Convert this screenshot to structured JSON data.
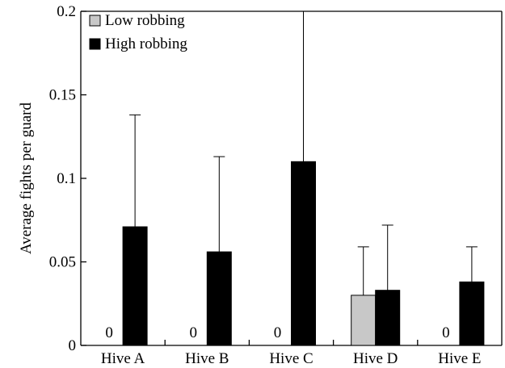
{
  "chart_data": {
    "type": "bar",
    "title": "",
    "xlabel": "",
    "ylabel": "Average fights per guard",
    "ylim": [
      0,
      0.2
    ],
    "yticks": [
      0,
      0.05,
      0.1,
      0.15,
      0.2
    ],
    "ytick_labels": [
      "0",
      "0.05",
      "0.1",
      "0.15",
      "0.2"
    ],
    "categories": [
      "Hive A",
      "Hive B",
      "Hive C",
      "Hive D",
      "Hive E"
    ],
    "grid": false,
    "legend_position": "top-left",
    "series": [
      {
        "name": "Low robbing",
        "color": "#c8c8c8",
        "values": [
          0,
          0,
          0,
          0.03,
          0
        ],
        "error": [
          null,
          null,
          null,
          0.059,
          null
        ],
        "zero_labels": [
          "0",
          "0",
          "0",
          null,
          "0"
        ]
      },
      {
        "name": "High robbing",
        "color": "#000000",
        "values": [
          0.071,
          0.056,
          0.11,
          0.033,
          0.038
        ],
        "error": [
          0.138,
          0.113,
          0.2,
          0.072,
          0.059
        ]
      }
    ]
  }
}
